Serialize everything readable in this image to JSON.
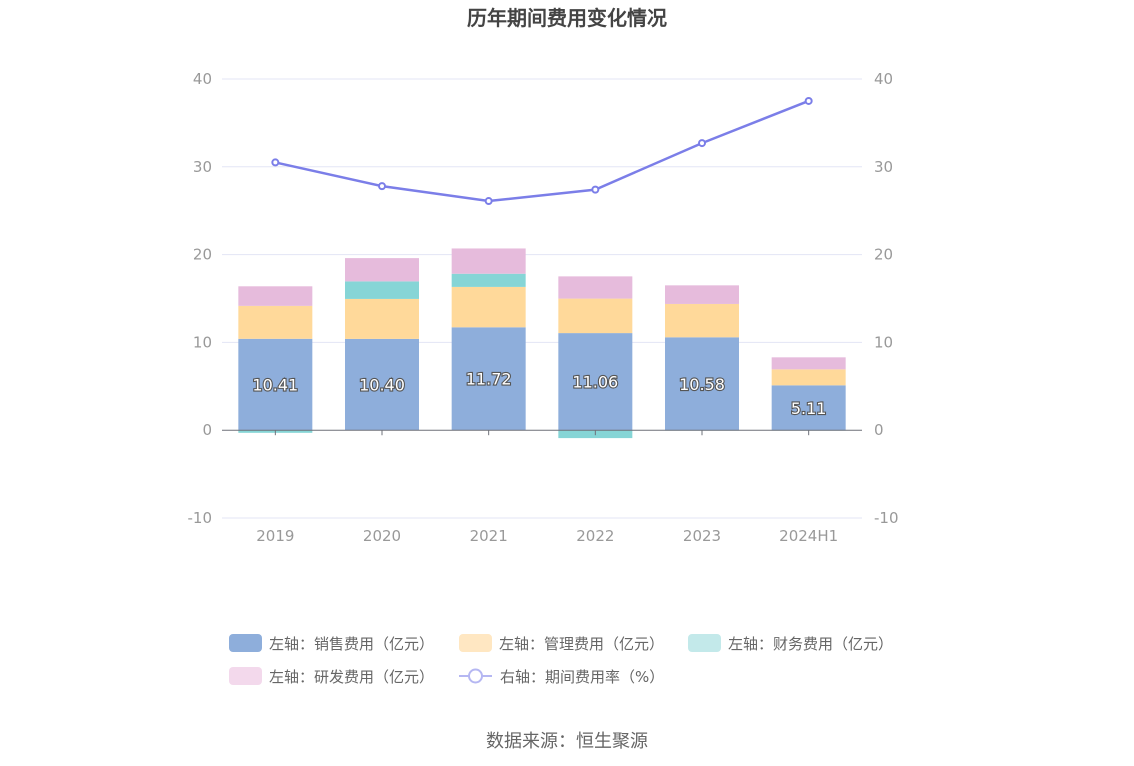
{
  "chart_data": {
    "type": "bar",
    "title": "历年期间费用变化情况",
    "categories": [
      "2019",
      "2020",
      "2021",
      "2022",
      "2023",
      "2024H1"
    ],
    "series": [
      {
        "name": "左轴：销售费用（亿元）",
        "axis": "left",
        "stack": "cost",
        "color": "#8eaedb",
        "values": [
          10.41,
          10.4,
          11.72,
          11.06,
          10.58,
          5.11
        ],
        "show_labels": true
      },
      {
        "name": "左轴：管理费用（亿元）",
        "axis": "left",
        "stack": "cost",
        "color": "#ffd99a",
        "values": [
          3.75,
          4.55,
          4.6,
          3.93,
          3.8,
          1.82
        ],
        "show_labels": false
      },
      {
        "name": "左轴：财务费用（亿元）",
        "axis": "left",
        "stack": "cost",
        "color": "#86d5d6",
        "values": [
          -0.3,
          2.0,
          1.5,
          -0.9,
          -0.05,
          -0.05
        ],
        "show_labels": false
      },
      {
        "name": "左轴：研发费用（亿元）",
        "axis": "left",
        "stack": "cost",
        "color": "#e6bbdc",
        "values": [
          2.23,
          2.65,
          2.88,
          2.53,
          2.12,
          1.37
        ],
        "show_labels": false
      },
      {
        "name": "右轴：期间费用率（%）",
        "axis": "right",
        "type": "line",
        "color": "#7b7ee8",
        "values": [
          30.5,
          27.8,
          26.1,
          27.4,
          32.7,
          37.5
        ]
      }
    ],
    "left_axis": {
      "ticks": [
        "40",
        "30",
        "20",
        "10",
        "0",
        "-10"
      ],
      "ylim": [
        -10,
        40
      ]
    },
    "right_axis": {
      "ticks": [
        "40",
        "30",
        "20",
        "10",
        "0",
        "-10"
      ],
      "ylim": [
        -10,
        40
      ]
    },
    "grid": true,
    "legend_position": "bottom"
  },
  "legend": {
    "sales": "左轴：销售费用（亿元）",
    "admin": "左轴：管理费用（亿元）",
    "finance": "左轴：财务费用（亿元）",
    "rd": "左轴：研发费用（亿元）",
    "rate": "右轴：期间费用率（%）"
  },
  "legend_colors": {
    "sales": "#8eaedb",
    "admin": "#ffe7c2",
    "finance": "#c3e9ea",
    "rd": "#f3d9ec",
    "rate": "#b5b7f2"
  },
  "source": "数据来源：恒生聚源"
}
